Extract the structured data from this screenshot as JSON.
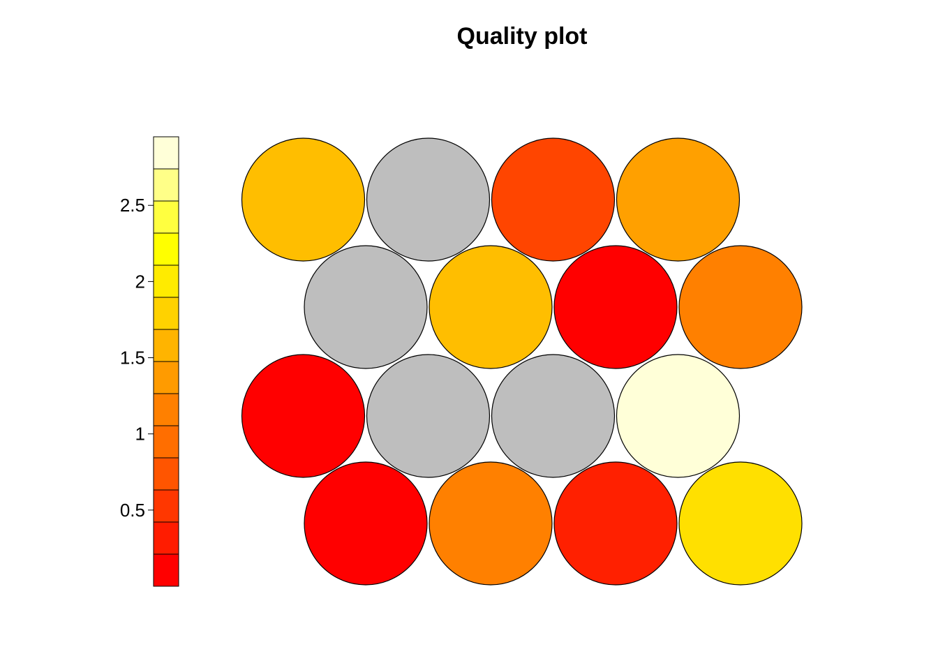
{
  "chart_data": {
    "type": "heatmap",
    "title": "Quality plot",
    "grid": "hexagonal",
    "grid_dims": [
      4,
      4
    ],
    "colorbar": {
      "ticks": [
        0.5,
        1,
        1.5,
        2,
        2.5
      ],
      "tick_labels": [
        "0.5",
        "1",
        "1.5",
        "2",
        "2.5"
      ],
      "range": [
        0,
        2.95
      ],
      "colors": [
        "#FF0000",
        "#FF1C00",
        "#FF3700",
        "#FF5500",
        "#FF6E00",
        "#FF8000",
        "#FF9B00",
        "#FFB400",
        "#FFD200",
        "#FFEB00",
        "#FFFF00",
        "#FFFF40",
        "#FFFF88",
        "#FFFFD8"
      ]
    },
    "cells": [
      {
        "row": 1,
        "col": 1,
        "value": 0.02,
        "color": "#FF0000"
      },
      {
        "row": 1,
        "col": 2,
        "value": 1.2,
        "color": "#FF8000"
      },
      {
        "row": 1,
        "col": 3,
        "value": 0.25,
        "color": "#FF2000"
      },
      {
        "row": 1,
        "col": 4,
        "value": 2.0,
        "color": "#FFE000"
      },
      {
        "row": 2,
        "col": 1,
        "value": 0.05,
        "color": "#FF0000"
      },
      {
        "row": 2,
        "col": 2,
        "value": null,
        "color": "#BEBEBE"
      },
      {
        "row": 2,
        "col": 3,
        "value": null,
        "color": "#BEBEBE"
      },
      {
        "row": 2,
        "col": 4,
        "value": 2.9,
        "color": "#FFFFD8"
      },
      {
        "row": 3,
        "col": 1,
        "value": null,
        "color": "#BEBEBE"
      },
      {
        "row": 3,
        "col": 2,
        "value": 1.7,
        "color": "#FFBE00"
      },
      {
        "row": 3,
        "col": 3,
        "value": 0.05,
        "color": "#FF0000"
      },
      {
        "row": 3,
        "col": 4,
        "value": 1.2,
        "color": "#FF8000"
      },
      {
        "row": 4,
        "col": 1,
        "value": 1.7,
        "color": "#FFBE00"
      },
      {
        "row": 4,
        "col": 2,
        "value": null,
        "color": "#BEBEBE"
      },
      {
        "row": 4,
        "col": 3,
        "value": 0.6,
        "color": "#FF4500"
      },
      {
        "row": 4,
        "col": 4,
        "value": 1.5,
        "color": "#FFA000"
      }
    ]
  }
}
